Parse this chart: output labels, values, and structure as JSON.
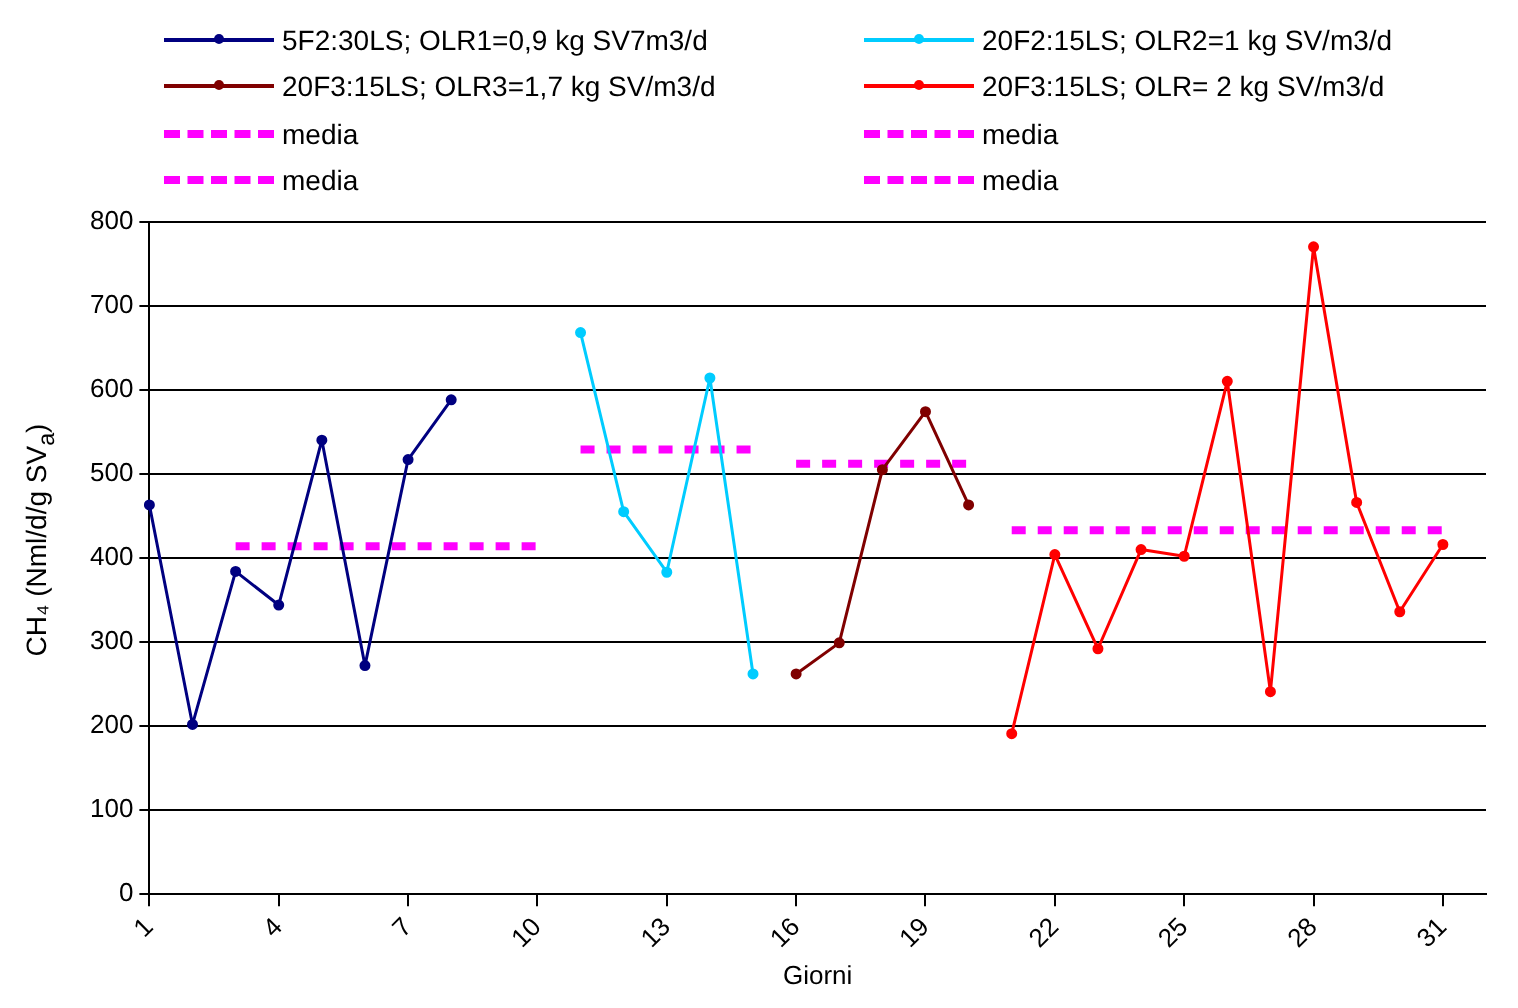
{
  "chart_data": {
    "type": "line",
    "xlabel": "Giorni",
    "ylabel": "CH₄ (Nml/d/g SV$_{a}$)",
    "categories": [
      "1",
      null,
      null,
      "4",
      null,
      null,
      "7",
      null,
      null,
      "10",
      null,
      null,
      "13",
      null,
      null,
      "16",
      null,
      null,
      "19",
      null,
      null,
      "22",
      null,
      null,
      "25",
      null,
      null,
      "28",
      null,
      null,
      "31",
      null
    ],
    "series": [
      {
        "name": "5F2:30LS; OLR1=0,9 kg SV7m3/d",
        "color": "#000080",
        "values": [
          463,
          202,
          384,
          344,
          540,
          272,
          517,
          588,
          null,
          null,
          null,
          null,
          null,
          null,
          null,
          null,
          null,
          null,
          null,
          null,
          null,
          null,
          null,
          null,
          null,
          null,
          null,
          null,
          null,
          null,
          null,
          null
        ]
      },
      {
        "name": "20F2:15LS; OLR2=1 kg SV/m3/d",
        "color": "#00ccff",
        "values": [
          null,
          null,
          null,
          null,
          null,
          null,
          null,
          null,
          null,
          null,
          668,
          455,
          383,
          614,
          262,
          null,
          null,
          null,
          null,
          null,
          null,
          null,
          null,
          null,
          null,
          null,
          null,
          null,
          null,
          null,
          null,
          null
        ]
      },
      {
        "name": "20F3:15LS; OLR3=1,7 kg SV/m3/d",
        "color": "#800000",
        "values": [
          null,
          null,
          null,
          null,
          null,
          null,
          null,
          null,
          null,
          null,
          null,
          null,
          null,
          null,
          null,
          262,
          299,
          505,
          574,
          463,
          null,
          null,
          null,
          null,
          null,
          null,
          null,
          null,
          null,
          null,
          null,
          null
        ]
      },
      {
        "name": "20F3:15LS; OLR= 2 kg SV/m3/d",
        "color": "#ff0000",
        "values": [
          null,
          null,
          null,
          null,
          null,
          null,
          null,
          null,
          null,
          null,
          null,
          null,
          null,
          null,
          null,
          null,
          null,
          null,
          null,
          null,
          191,
          404,
          292,
          410,
          402,
          610,
          241,
          770,
          466,
          336,
          416,
          null
        ]
      },
      {
        "name": "media",
        "color": "#ff00ff",
        "line_style": "dashed",
        "marker": "none",
        "values": [
          null,
          null,
          414,
          414,
          414,
          414,
          414,
          414,
          414,
          414,
          null,
          null,
          null,
          null,
          null,
          null,
          null,
          null,
          null,
          null,
          null,
          null,
          null,
          null,
          null,
          null,
          null,
          null,
          null,
          null,
          null,
          null
        ]
      },
      {
        "name": "media",
        "color": "#ff00ff",
        "line_style": "dashed",
        "marker": "none",
        "values": [
          null,
          null,
          null,
          null,
          null,
          null,
          null,
          null,
          null,
          null,
          529,
          529,
          529,
          529,
          529,
          null,
          null,
          null,
          null,
          null,
          null,
          null,
          null,
          null,
          null,
          null,
          null,
          null,
          null,
          null,
          null,
          null
        ]
      },
      {
        "name": "media",
        "color": "#ff00ff",
        "line_style": "dashed",
        "marker": "none",
        "values": [
          null,
          null,
          null,
          null,
          null,
          null,
          null,
          null,
          null,
          null,
          null,
          null,
          null,
          null,
          null,
          512,
          512,
          512,
          512,
          512,
          null,
          null,
          null,
          null,
          null,
          null,
          null,
          null,
          null,
          null,
          null,
          null
        ]
      },
      {
        "name": "media",
        "color": "#ff00ff",
        "line_style": "dashed",
        "marker": "none",
        "values": [
          null,
          null,
          null,
          null,
          null,
          null,
          null,
          null,
          null,
          null,
          null,
          null,
          null,
          null,
          null,
          null,
          null,
          null,
          null,
          null,
          433,
          433,
          433,
          433,
          433,
          433,
          433,
          433,
          433,
          433,
          433,
          null
        ]
      }
    ],
    "ylim": [
      0,
      800
    ],
    "yticks": [
      0,
      100,
      200,
      300,
      400,
      500,
      600,
      700,
      800
    ],
    "grid": "y",
    "legend": "top",
    "marker": "circle",
    "line_style": "solid"
  }
}
